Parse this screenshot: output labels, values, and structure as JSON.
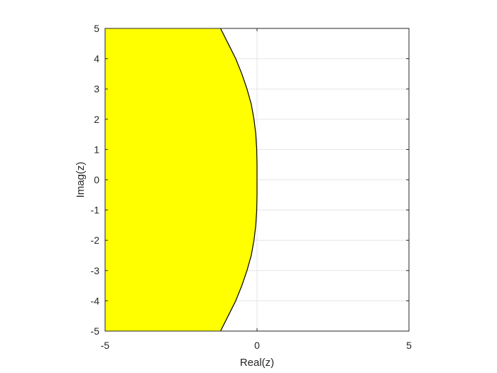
{
  "chart_data": {
    "type": "area",
    "xlabel": "Real(z)",
    "ylabel": "Imag(z)",
    "xlim": [
      -5,
      5
    ],
    "ylim": [
      -5,
      5
    ],
    "x_ticks": [
      -5,
      0,
      5
    ],
    "y_ticks": [
      5,
      4,
      3,
      2,
      1,
      0,
      -1,
      -2,
      -3,
      -4,
      -5
    ],
    "x_tick_labels": [
      "-5",
      "0",
      "5"
    ],
    "y_tick_labels": [
      "5",
      "4",
      "3",
      "2",
      "1",
      "0",
      "-1",
      "-2",
      "-3",
      "-4",
      "-5"
    ],
    "grid": true,
    "region": {
      "name": "",
      "fill_color": "#ffff00",
      "edge_color": "#000000",
      "boundary_points": [
        {
          "x": -1.2,
          "y": 5.0
        },
        {
          "x": -0.95,
          "y": 4.5
        },
        {
          "x": -0.7,
          "y": 4.0
        },
        {
          "x": -0.5,
          "y": 3.5
        },
        {
          "x": -0.33,
          "y": 3.0
        },
        {
          "x": -0.19,
          "y": 2.5
        },
        {
          "x": -0.1,
          "y": 2.0
        },
        {
          "x": -0.04,
          "y": 1.5
        },
        {
          "x": -0.01,
          "y": 1.0
        },
        {
          "x": 0.0,
          "y": 0.5
        },
        {
          "x": 0.0,
          "y": 0.0
        },
        {
          "x": 0.0,
          "y": -0.5
        },
        {
          "x": -0.01,
          "y": -1.0
        },
        {
          "x": -0.04,
          "y": -1.5
        },
        {
          "x": -0.1,
          "y": -2.0
        },
        {
          "x": -0.19,
          "y": -2.5
        },
        {
          "x": -0.33,
          "y": -3.0
        },
        {
          "x": -0.5,
          "y": -3.5
        },
        {
          "x": -0.7,
          "y": -4.0
        },
        {
          "x": -0.95,
          "y": -4.5
        },
        {
          "x": -1.2,
          "y": -5.0
        }
      ]
    },
    "colors": {
      "grid": "#e6e6e6",
      "axes": "#262626",
      "fill": "#ffff00",
      "boundary": "#000000"
    }
  }
}
